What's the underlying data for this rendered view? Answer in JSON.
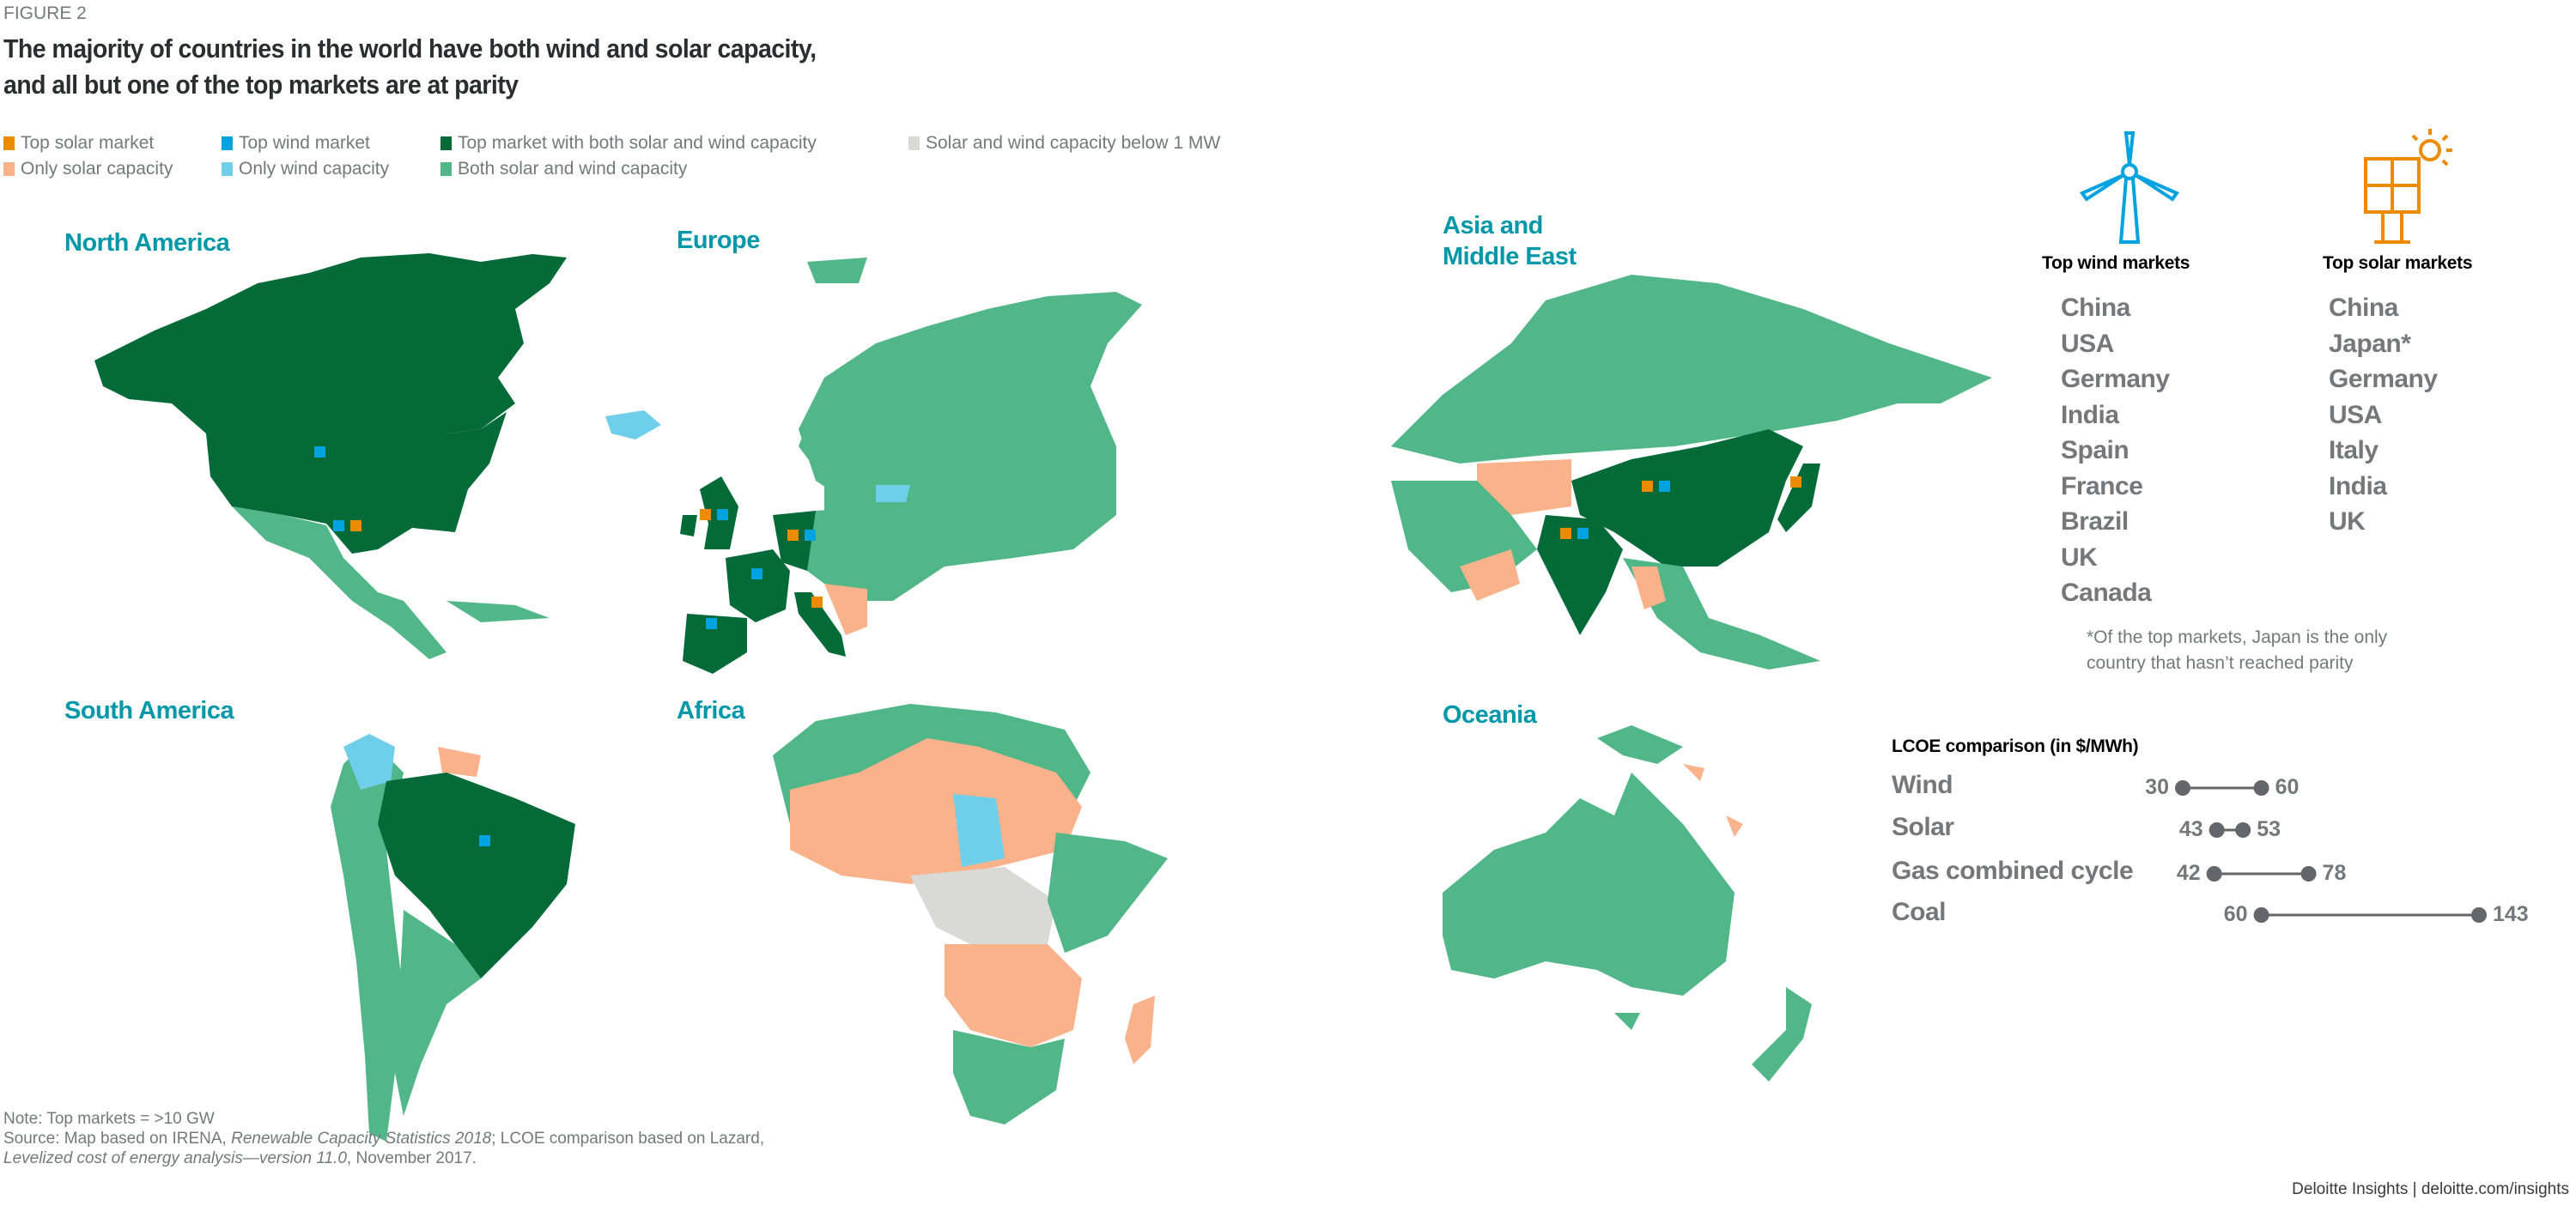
{
  "figure_label": "FIGURE 2",
  "title_line1": "The majority of countries in the world have both wind and solar capacity,",
  "title_line2": "and all but one of the top markets are at parity",
  "colors": {
    "top_solar": "#ed8b00",
    "top_wind": "#00a3e0",
    "top_both": "#046a38",
    "below_1mw": "#d9d9d6",
    "only_solar": "#f9b28a",
    "only_wind": "#6fcfeb",
    "both": "#52b788"
  },
  "legend": [
    {
      "label": "Top solar market",
      "color": "#ed8b00"
    },
    {
      "label": "Top wind market",
      "color": "#00a3e0"
    },
    {
      "label": "Top market with both solar and wind capacity",
      "color": "#046a38"
    },
    {
      "label": "Solar and wind capacity below 1 MW",
      "color": "#d9d9d6"
    },
    {
      "label": "Only solar capacity",
      "color": "#f9b28a"
    },
    {
      "label": "Only wind capacity",
      "color": "#6fcfeb"
    },
    {
      "label": "Both solar and wind capacity",
      "color": "#52b788"
    }
  ],
  "regions": {
    "north_america": "North America",
    "europe": "Europe",
    "asia_line1": "Asia and",
    "asia_line2": "Middle East",
    "south_america": "South America",
    "africa": "Africa",
    "oceania": "Oceania"
  },
  "icons": {
    "wind": "wind-turbine-icon",
    "solar": "solar-panel-icon"
  },
  "top_wind": {
    "heading": "Top wind markets",
    "items": [
      "China",
      "USA",
      "Germany",
      "India",
      "Spain",
      "France",
      "Brazil",
      "UK",
      "Canada"
    ]
  },
  "top_solar": {
    "heading": "Top solar markets",
    "items": [
      "China",
      "Japan*",
      "Germany",
      "USA",
      "Italy",
      "India",
      "UK"
    ]
  },
  "note_line1": "*Of the top markets, Japan is the only",
  "note_line2": "country that hasn’t reached parity",
  "chart_data": {
    "type": "dumbbell",
    "title": "LCOE comparison (in $/MWh)",
    "categories": [
      "Wind",
      "Solar",
      "Gas combined cycle",
      "Coal"
    ],
    "low": [
      30,
      43,
      42,
      60
    ],
    "high": [
      60,
      53,
      78,
      143
    ],
    "color": "#63666a"
  },
  "footer": {
    "note": "Note: Top markets = >10 GW",
    "source_prefix": "Source: Map based on IRENA, ",
    "source_italic1": "Renewable Capacity Statistics 2018",
    "source_mid": "; LCOE comparison based on Lazard,",
    "source_italic2": "Levelized cost of energy analysis—version 11.0",
    "source_end": ", November 2017."
  },
  "brand": "Deloitte Insights | deloitte.com/insights"
}
